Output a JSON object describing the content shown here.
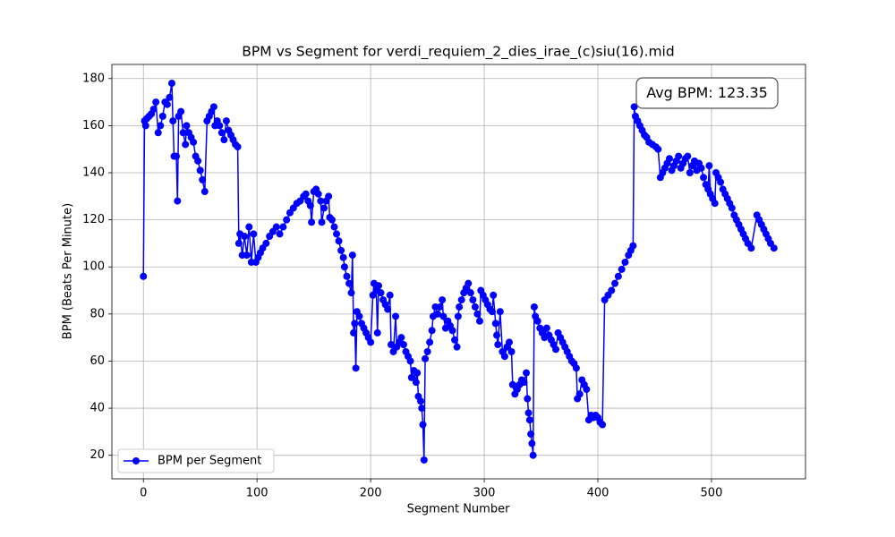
{
  "chart_data": {
    "type": "line",
    "title": "BPM vs Segment for verdi_requiem_2_dies_irae_(c)siu(16).mid",
    "x_label": "Segment Number",
    "y_label": "BPM (Beats Per Minute)",
    "annotation": "Avg BPM: 123.35",
    "x": [
      0,
      1,
      2,
      3,
      5,
      7,
      9,
      11,
      13,
      15,
      17,
      19,
      21,
      23,
      25,
      26,
      27,
      29,
      30,
      31,
      33,
      35,
      37,
      38,
      40,
      42,
      44,
      46,
      48,
      50,
      52,
      54,
      56,
      58,
      60,
      62,
      63,
      65,
      67,
      69,
      71,
      73,
      75,
      77,
      79,
      81,
      83,
      84,
      85,
      87,
      89,
      91,
      93,
      95,
      97,
      99,
      101,
      103,
      105,
      108,
      111,
      114,
      117,
      120,
      123,
      126,
      129,
      132,
      135,
      138,
      141,
      143,
      145,
      147,
      148,
      150,
      152,
      154,
      156,
      157,
      159,
      161,
      163,
      164,
      166,
      168,
      170,
      172,
      174,
      176,
      177,
      179,
      181,
      183,
      184,
      185,
      186,
      187,
      188,
      190,
      192,
      194,
      196,
      198,
      200,
      202,
      203,
      205,
      206,
      207,
      209,
      211,
      213,
      215,
      217,
      218,
      220,
      222,
      223,
      225,
      227,
      229,
      231,
      233,
      235,
      236,
      238,
      240,
      241,
      242,
      244,
      245,
      246,
      247,
      248,
      250,
      252,
      254,
      255,
      257,
      259,
      261,
      263,
      264,
      266,
      268,
      270,
      272,
      274,
      276,
      277,
      278,
      280,
      282,
      284,
      286,
      288,
      290,
      292,
      294,
      296,
      297,
      299,
      301,
      303,
      305,
      307,
      308,
      310,
      311,
      312,
      314,
      316,
      318,
      320,
      322,
      324,
      325,
      327,
      329,
      331,
      333,
      335,
      337,
      338,
      339,
      340,
      341,
      342,
      343,
      344,
      345,
      347,
      349,
      351,
      353,
      355,
      357,
      359,
      361,
      363,
      365,
      367,
      369,
      371,
      373,
      375,
      377,
      379,
      381,
      382,
      384,
      386,
      388,
      390,
      392,
      394,
      396,
      398,
      400,
      402,
      404,
      406,
      409,
      412,
      415,
      418,
      421,
      424,
      427,
      429,
      431,
      432,
      433,
      435,
      437,
      439,
      441,
      443,
      445,
      448,
      451,
      453,
      455,
      457,
      459,
      461,
      463,
      465,
      467,
      469,
      471,
      473,
      475,
      477,
      479,
      481,
      483,
      485,
      487,
      489,
      491,
      493,
      495,
      497,
      498,
      499,
      501,
      503,
      504,
      506,
      508,
      510,
      512,
      514,
      516,
      518,
      520,
      522,
      524,
      526,
      528,
      530,
      532,
      535,
      540,
      542,
      544,
      546,
      548,
      550,
      552,
      555
    ],
    "series": [
      {
        "name": "BPM per Segment",
        "color": "#0000ff",
        "values": [
          96,
          162,
          160,
          163,
          164,
          165,
          167,
          170,
          157,
          160,
          164,
          170,
          169,
          172,
          178,
          162,
          147,
          147,
          128,
          164,
          166,
          157,
          152,
          160,
          157,
          155,
          153,
          147,
          145,
          141,
          137,
          132,
          162,
          164,
          166,
          168,
          160,
          162,
          160,
          157,
          154,
          162,
          158,
          156,
          154,
          152,
          151,
          110,
          114,
          105,
          113,
          105,
          117,
          102,
          114,
          102,
          104,
          106,
          108,
          110,
          113,
          115,
          117,
          114,
          117,
          120,
          123,
          125,
          127,
          128,
          130,
          131,
          128,
          126,
          119,
          132,
          133,
          131,
          128,
          119,
          125,
          128,
          130,
          121,
          120,
          117,
          114,
          111,
          107,
          104,
          100,
          96,
          93,
          89,
          105,
          72,
          76,
          57,
          81,
          79,
          76,
          74,
          72,
          70,
          68,
          88,
          93,
          90,
          72,
          92,
          89,
          86,
          84,
          82,
          88,
          67,
          64,
          79,
          66,
          68,
          70,
          67,
          64,
          62,
          60,
          53,
          56,
          51,
          55,
          45,
          43,
          40,
          33,
          18,
          61,
          64,
          68,
          73,
          79,
          83,
          80,
          83,
          86,
          79,
          74,
          77,
          75,
          73,
          69,
          66,
          79,
          83,
          86,
          89,
          91,
          93,
          89,
          86,
          83,
          80,
          77,
          90,
          88,
          86,
          84,
          82,
          81,
          88,
          76,
          71,
          67,
          81,
          64,
          62,
          66,
          68,
          64,
          50,
          46,
          48,
          50,
          52,
          51,
          55,
          44,
          38,
          35,
          29,
          25,
          20,
          83,
          79,
          77,
          74,
          72,
          70,
          74,
          71,
          69,
          67,
          65,
          72,
          70,
          68,
          66,
          64,
          62,
          60,
          59,
          57,
          44,
          46,
          52,
          50,
          48,
          35,
          37,
          36,
          37,
          36,
          34,
          33,
          86,
          88,
          90,
          93,
          96,
          99,
          102,
          105,
          107,
          109,
          168,
          164,
          162,
          160,
          158,
          156,
          155,
          153,
          152,
          151,
          150,
          138,
          140,
          142,
          144,
          146,
          141,
          143,
          145,
          147,
          142,
          144,
          146,
          147,
          140,
          143,
          145,
          141,
          144,
          142,
          138,
          135,
          133,
          143,
          131,
          129,
          127,
          140,
          138,
          136,
          133,
          131,
          129,
          127,
          125,
          122,
          120,
          118,
          116,
          114,
          112,
          110,
          108,
          122,
          120,
          118,
          116,
          114,
          112,
          110,
          108
        ]
      }
    ],
    "xlim": [
      -27.75,
      582.75
    ],
    "ylim": [
      10,
      186
    ],
    "xticks": [
      0,
      100,
      200,
      300,
      400,
      500
    ],
    "yticks": [
      20,
      40,
      60,
      80,
      100,
      120,
      140,
      160,
      180
    ],
    "grid": true,
    "legend": "lower left"
  }
}
